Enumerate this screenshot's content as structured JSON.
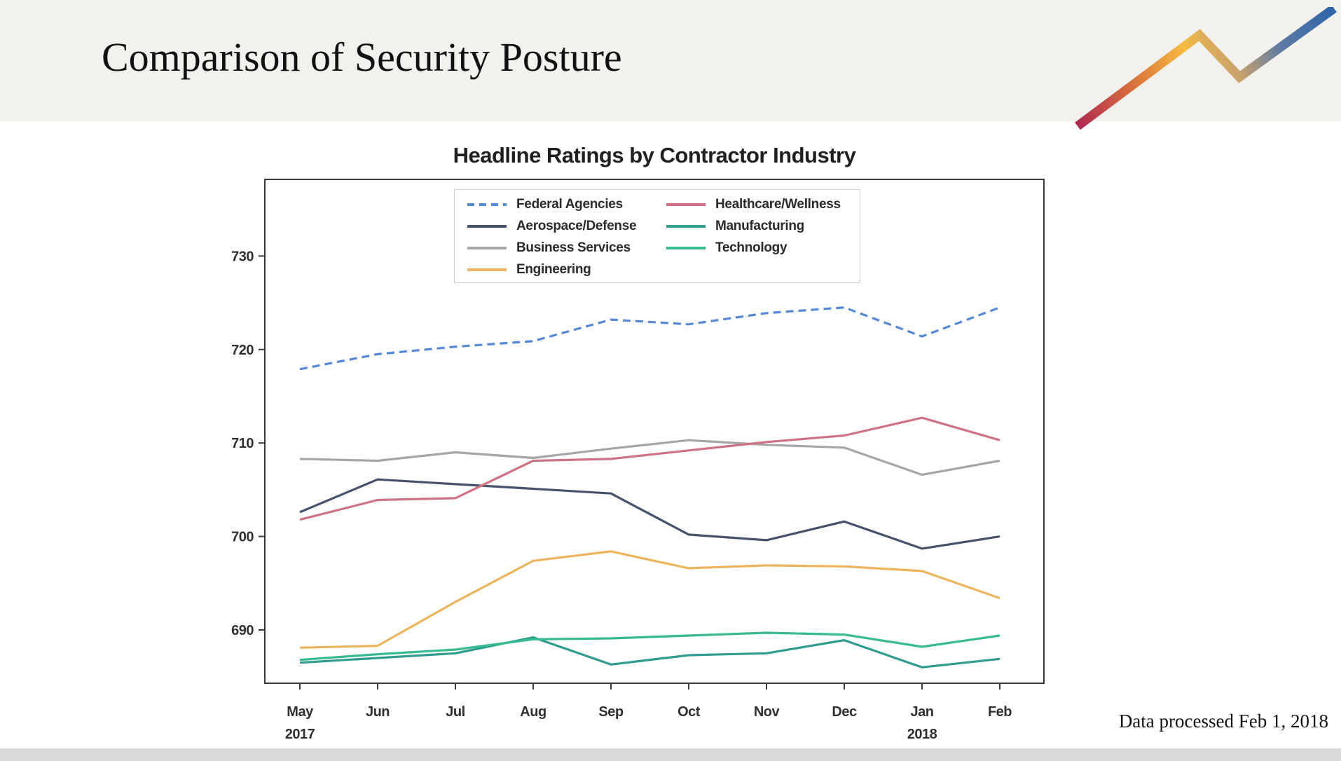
{
  "header": {
    "title": "Comparison of Security Posture"
  },
  "logo": {
    "description": "zigzag rising trend-line mark",
    "gradient_colors": [
      "#b12a50",
      "#e07f3a",
      "#f5bc42",
      "#c9a26b",
      "#2f66a8"
    ]
  },
  "footer": {
    "note": "Data processed Feb 1, 2018"
  },
  "chart_data": {
    "type": "line",
    "title": "Headline Ratings by Contractor Industry",
    "xlabel": "",
    "ylabel": "",
    "grid": false,
    "ylim": [
      684.3,
      738.2
    ],
    "yticks": [
      690,
      700,
      710,
      720,
      730
    ],
    "legend_position": "upper center, two columns, framed",
    "months": [
      {
        "label": "May",
        "sublabel": "2017"
      },
      {
        "label": "Jun",
        "sublabel": ""
      },
      {
        "label": "Jul",
        "sublabel": ""
      },
      {
        "label": "Aug",
        "sublabel": ""
      },
      {
        "label": "Sep",
        "sublabel": ""
      },
      {
        "label": "Oct",
        "sublabel": ""
      },
      {
        "label": "Nov",
        "sublabel": ""
      },
      {
        "label": "Dec",
        "sublabel": ""
      },
      {
        "label": "Jan",
        "sublabel": "2018"
      },
      {
        "label": "Feb",
        "sublabel": ""
      }
    ],
    "series": [
      {
        "name": "Federal Agencies",
        "color": "#5688d8",
        "dashed": true,
        "values": [
          717.9,
          719.5,
          720.3,
          720.9,
          723.2,
          722.7,
          723.9,
          724.5,
          721.4,
          724.5
        ]
      },
      {
        "name": "Aerospace/Defense",
        "color": "#45526b",
        "dashed": false,
        "values": [
          702.6,
          706.1,
          705.6,
          705.1,
          704.6,
          700.2,
          699.6,
          701.6,
          698.7,
          700.0
        ]
      },
      {
        "name": "Business Services",
        "color": "#a6a6a6",
        "dashed": false,
        "values": [
          708.3,
          708.1,
          709.0,
          708.4,
          709.4,
          710.3,
          709.8,
          709.5,
          706.6,
          708.1
        ]
      },
      {
        "name": "Engineering",
        "color": "#edb45e",
        "dashed": false,
        "values": [
          688.1,
          688.3,
          693.0,
          697.4,
          698.4,
          696.6,
          696.9,
          696.8,
          696.3,
          693.4
        ]
      },
      {
        "name": "Healthcare/Wellness",
        "color": "#cf7384",
        "dashed": false,
        "values": [
          701.8,
          703.9,
          704.1,
          708.1,
          708.3,
          709.2,
          710.1,
          710.8,
          712.7,
          710.3
        ]
      },
      {
        "name": "Manufacturing",
        "color": "#2f9c8e",
        "dashed": false,
        "values": [
          686.5,
          687.0,
          687.5,
          689.2,
          686.3,
          687.3,
          687.5,
          688.9,
          686.0,
          686.9
        ]
      },
      {
        "name": "Technology",
        "color": "#36bb90",
        "dashed": false,
        "values": [
          686.8,
          687.4,
          687.9,
          689.0,
          689.1,
          689.4,
          689.7,
          689.5,
          688.2,
          689.4
        ]
      }
    ],
    "legend_columns": [
      [
        0,
        1,
        2,
        3
      ],
      [
        4,
        5,
        6
      ]
    ]
  }
}
